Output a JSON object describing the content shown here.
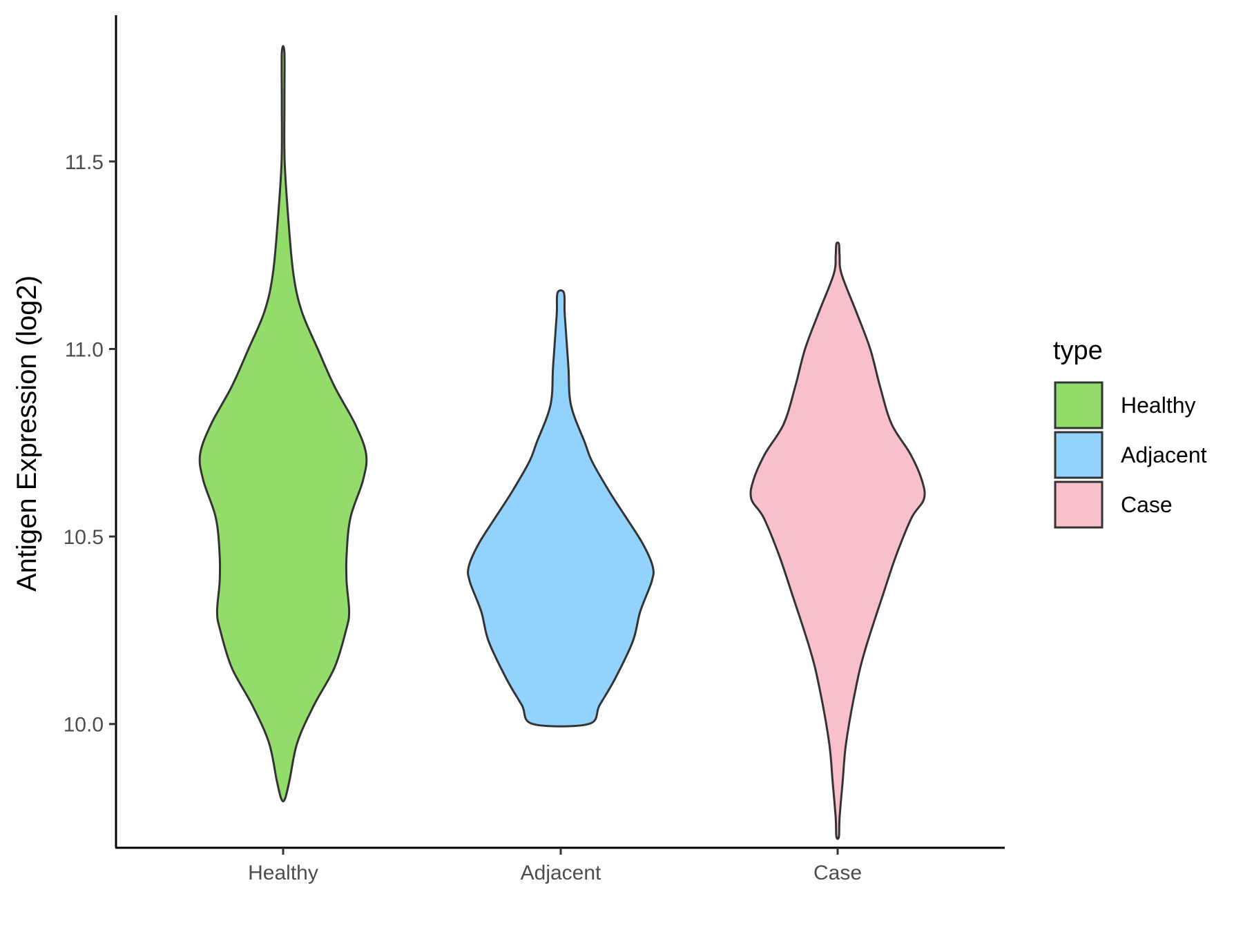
{
  "chart_data": {
    "type": "violin",
    "title": "",
    "xlabel": "",
    "ylabel": "Antigen Expression (log2)",
    "categories": [
      "Healthy",
      "Adjacent",
      "Case"
    ],
    "ylim": [
      9.67,
      11.89
    ],
    "yticks": [
      10.0,
      10.5,
      11.0,
      11.5
    ],
    "ytick_labels": [
      "10.0",
      "10.5",
      "11.0",
      "11.5"
    ],
    "grid": false,
    "legend": {
      "title": "type",
      "position": "right",
      "entries": [
        "Healthy",
        "Adjacent",
        "Case"
      ]
    },
    "colors": {
      "Healthy": "#93DB6A",
      "Adjacent": "#93D2FC",
      "Case": "#F7C0CB",
      "outline": "#333333"
    },
    "series": [
      {
        "category": "Healthy",
        "min": 9.8,
        "max": 11.79,
        "density": [
          [
            9.8,
            0.014
          ],
          [
            9.85,
            0.05
          ],
          [
            9.95,
            0.11
          ],
          [
            10.05,
            0.24
          ],
          [
            10.15,
            0.4
          ],
          [
            10.25,
            0.49
          ],
          [
            10.3,
            0.514
          ],
          [
            10.38,
            0.494
          ],
          [
            10.45,
            0.494
          ],
          [
            10.55,
            0.524
          ],
          [
            10.65,
            0.622
          ],
          [
            10.72,
            0.646
          ],
          [
            10.8,
            0.56
          ],
          [
            10.9,
            0.4
          ],
          [
            11.0,
            0.27
          ],
          [
            11.1,
            0.145
          ],
          [
            11.2,
            0.08
          ],
          [
            11.35,
            0.04
          ],
          [
            11.5,
            0.012
          ],
          [
            11.65,
            0.01
          ],
          [
            11.79,
            0.01
          ]
        ]
      },
      {
        "category": "Adjacent",
        "min": 10.0,
        "max": 11.15,
        "density": [
          [
            10.0,
            0.217
          ],
          [
            10.05,
            0.302
          ],
          [
            10.12,
            0.422
          ],
          [
            10.22,
            0.561
          ],
          [
            10.3,
            0.619
          ],
          [
            10.38,
            0.708
          ],
          [
            10.42,
            0.716
          ],
          [
            10.48,
            0.64
          ],
          [
            10.55,
            0.51
          ],
          [
            10.62,
            0.378
          ],
          [
            10.7,
            0.244
          ],
          [
            10.75,
            0.188
          ],
          [
            10.85,
            0.08
          ],
          [
            10.95,
            0.06
          ],
          [
            11.05,
            0.04
          ],
          [
            11.1,
            0.03
          ],
          [
            11.15,
            0.025
          ]
        ]
      },
      {
        "category": "Case",
        "min": 9.7,
        "max": 11.28,
        "density": [
          [
            9.7,
            0.01
          ],
          [
            9.75,
            0.015
          ],
          [
            9.85,
            0.04
          ],
          [
            9.95,
            0.066
          ],
          [
            10.1,
            0.144
          ],
          [
            10.2,
            0.216
          ],
          [
            10.35,
            0.358
          ],
          [
            10.45,
            0.456
          ],
          [
            10.55,
            0.576
          ],
          [
            10.6,
            0.672
          ],
          [
            10.65,
            0.656
          ],
          [
            10.72,
            0.566
          ],
          [
            10.8,
            0.42
          ],
          [
            10.9,
            0.33
          ],
          [
            11.0,
            0.254
          ],
          [
            11.1,
            0.144
          ],
          [
            11.2,
            0.03
          ],
          [
            11.25,
            0.015
          ],
          [
            11.28,
            0.01
          ]
        ]
      }
    ]
  }
}
